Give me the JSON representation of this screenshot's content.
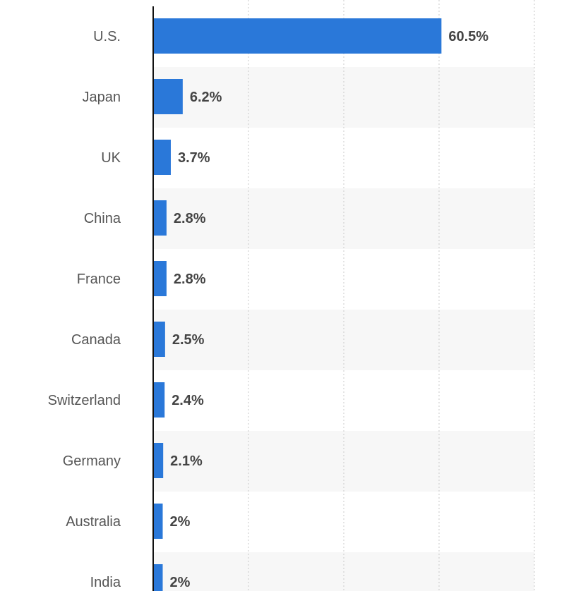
{
  "chart_data": {
    "type": "bar",
    "orientation": "horizontal",
    "categories": [
      "U.S.",
      "Japan",
      "UK",
      "China",
      "France",
      "Canada",
      "Switzerland",
      "Germany",
      "Australia",
      "India"
    ],
    "values": [
      60.5,
      6.2,
      3.7,
      2.8,
      2.8,
      2.5,
      2.4,
      2.1,
      2,
      2
    ],
    "value_labels": [
      "60.5%",
      "6.2%",
      "3.7%",
      "2.8%",
      "2.8%",
      "2.5%",
      "2.4%",
      "2.1%",
      "2%",
      "2%"
    ],
    "unit": "%",
    "xlim": [
      0,
      80
    ],
    "grid": true,
    "bar_color": "#2a78d9"
  }
}
